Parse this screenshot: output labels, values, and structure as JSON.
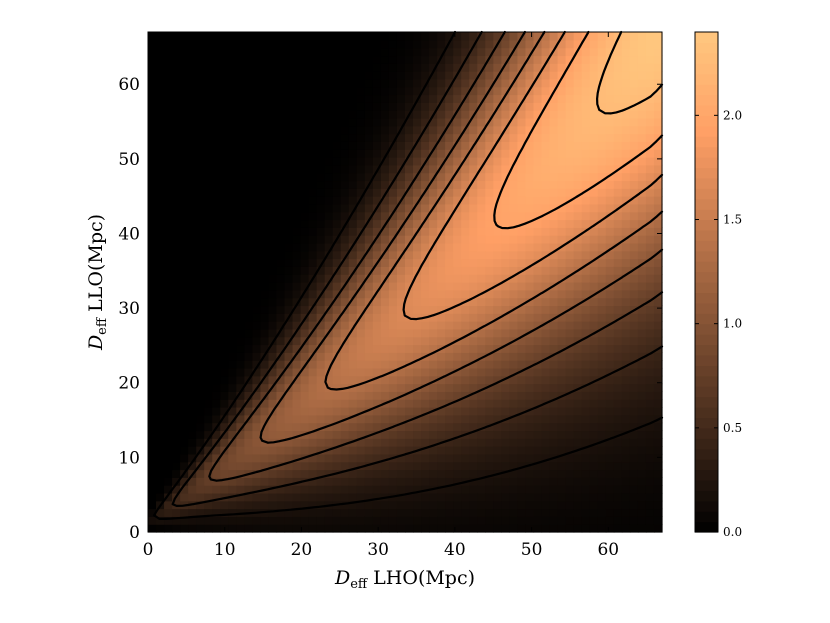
{
  "chart_data": {
    "type": "heatmap",
    "title": "",
    "xlabel": {
      "main": "D",
      "sub": "eff",
      "rest": " LHO(Mpc)"
    },
    "ylabel": {
      "main": "D",
      "sub": "eff",
      "rest": " LLO(Mpc)"
    },
    "xlim": [
      0,
      67
    ],
    "ylim": [
      0,
      67
    ],
    "x_ticks": [
      "0",
      "10",
      "20",
      "30",
      "40",
      "50",
      "60"
    ],
    "y_ticks": [
      "0",
      "10",
      "20",
      "30",
      "40",
      "50",
      "60"
    ],
    "colorbar": {
      "range": [
        0.0,
        2.4
      ],
      "ticks": [
        "0.0",
        "0.5",
        "1.0",
        "1.5",
        "2.0"
      ],
      "colormap": "copper"
    },
    "density_model": {
      "ridge_slope_low": 0.7,
      "ridge_slope_high": 1.0,
      "ridge_intercept": 1.5,
      "width_scale": 0.35,
      "width_offset": 0.4,
      "amplitude_scale": 0.24,
      "amplitude_cap": 2.4
    },
    "contour_levels": [
      0.2,
      0.45,
      0.75,
      1.05,
      1.35,
      1.65,
      1.95,
      2.25
    ],
    "grid": false
  }
}
